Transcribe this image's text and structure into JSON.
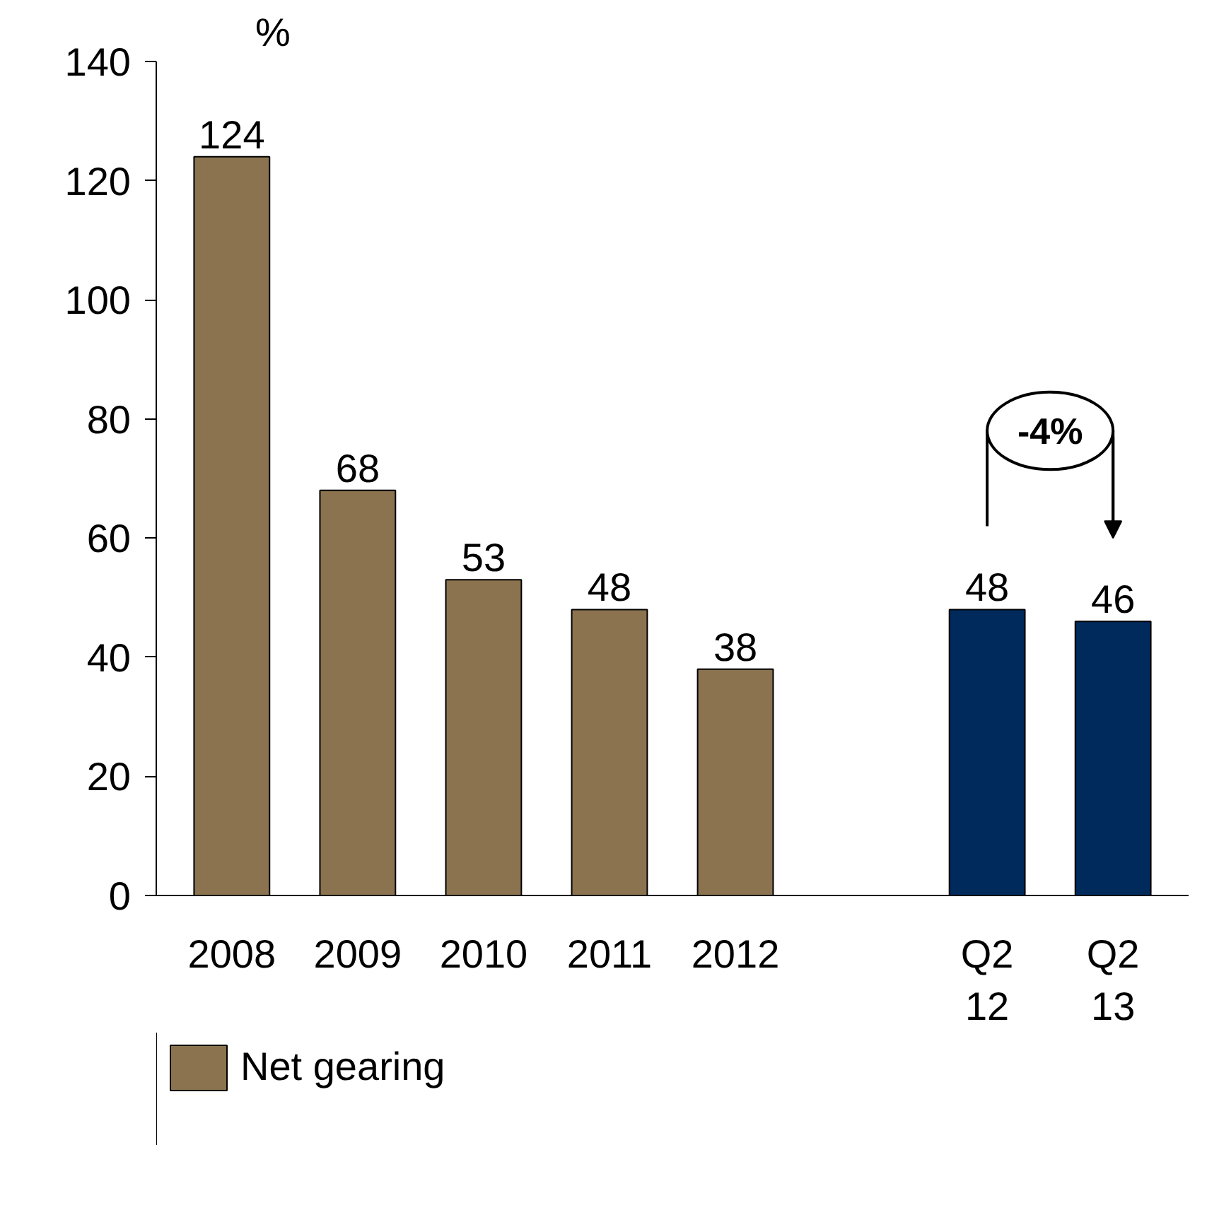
{
  "chart_data": {
    "type": "bar",
    "ylabel": "%",
    "categories": [
      "2008",
      "2009",
      "2010",
      "2011",
      "2012",
      null,
      "Q2\n12",
      "Q2\n13"
    ],
    "series": [
      {
        "name": "Net gearing",
        "color": "#8b7350",
        "values": [
          124,
          68,
          53,
          48,
          38,
          null,
          48,
          46
        ],
        "colors": [
          "#8b7350",
          "#8b7350",
          "#8b7350",
          "#8b7350",
          "#8b7350",
          null,
          "#002a5c",
          "#002a5c"
        ]
      }
    ],
    "ylim": [
      0,
      140
    ],
    "yticks": [
      0,
      20,
      40,
      60,
      80,
      100,
      120,
      140
    ],
    "data_labels": true,
    "grid": false,
    "legend": "bottom left",
    "annotations": [
      "-4%"
    ]
  }
}
